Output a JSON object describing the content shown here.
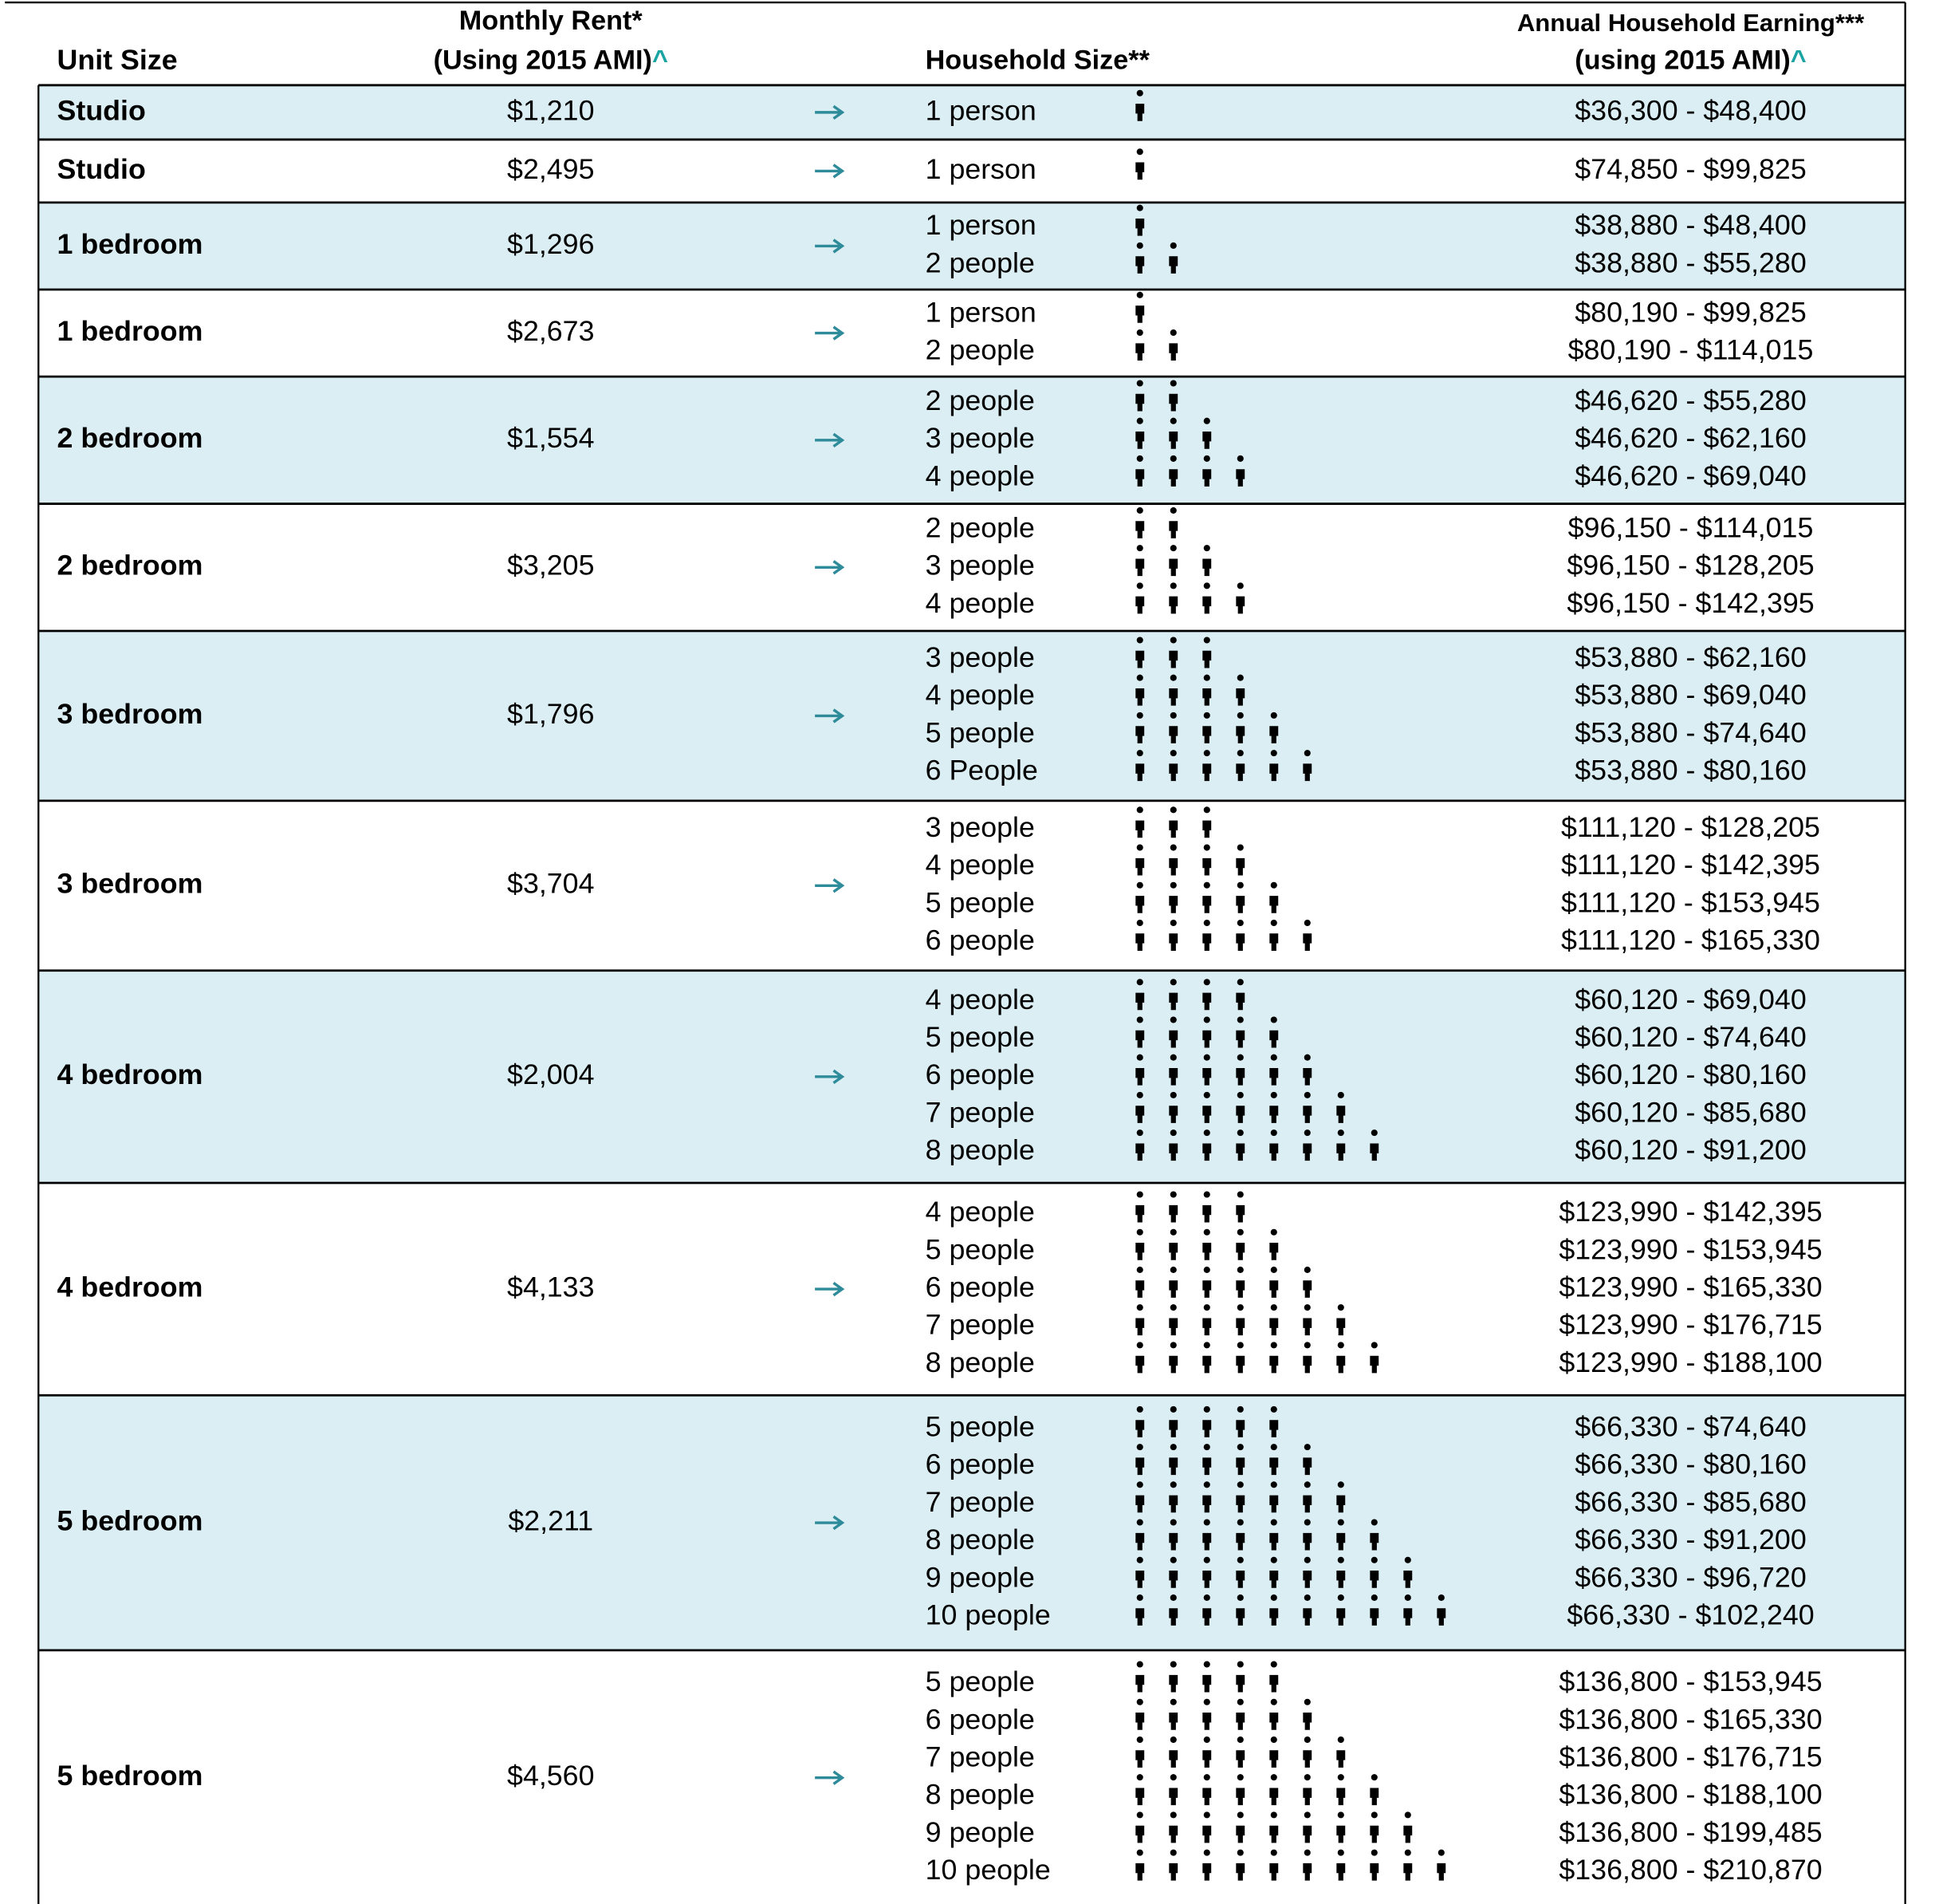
{
  "header": {
    "unit_size": "Unit Size",
    "rent_line1": "Monthly Rent*",
    "rent_line2": "(Using 2015 AMI)",
    "rent_caret": "^",
    "household": "Household Size**",
    "earning_line1": "Annual Household Earning***",
    "earning_line2": "(using 2015 AMI)",
    "earning_caret": "^"
  },
  "rows": [
    {
      "unit": "Studio",
      "rent": "$1,210",
      "households": [
        {
          "size": "1 person",
          "icons": 1,
          "range": "$36,300  - $48,400"
        }
      ]
    },
    {
      "unit": "Studio",
      "rent": "$2,495",
      "households": [
        {
          "size": "1 person",
          "icons": 1,
          "range": "$74,850  - $99,825"
        }
      ]
    },
    {
      "unit": "1 bedroom",
      "rent": "$1,296",
      "households": [
        {
          "size": "1 person",
          "icons": 1,
          "range": "$38,880  - $48,400"
        },
        {
          "size": "2 people",
          "icons": 2,
          "range": "$38,880  - $55,280"
        }
      ]
    },
    {
      "unit": "1 bedroom",
      "rent": "$2,673",
      "households": [
        {
          "size": "1 person",
          "icons": 1,
          "range": "$80,190  - $99,825"
        },
        {
          "size": "2 people",
          "icons": 2,
          "range": "$80,190  - $114,015"
        }
      ]
    },
    {
      "unit": "2 bedroom",
      "rent": "$1,554",
      "households": [
        {
          "size": "2 people",
          "icons": 2,
          "range": "$46,620  - $55,280"
        },
        {
          "size": "3 people",
          "icons": 3,
          "range": "$46,620  - $62,160"
        },
        {
          "size": "4 people",
          "icons": 4,
          "range": "$46,620  - $69,040"
        }
      ]
    },
    {
      "unit": "2 bedroom",
      "rent": "$3,205",
      "households": [
        {
          "size": "2 people",
          "icons": 2,
          "range": "$96,150  - $114,015"
        },
        {
          "size": "3 people",
          "icons": 3,
          "range": "$96,150  - $128,205"
        },
        {
          "size": "4 people",
          "icons": 4,
          "range": "$96,150  - $142,395"
        }
      ]
    },
    {
      "unit": "3 bedroom",
      "rent": "$1,796",
      "households": [
        {
          "size": "3 people",
          "icons": 3,
          "range": "$53,880  - $62,160"
        },
        {
          "size": "4 people",
          "icons": 4,
          "range": "$53,880  - $69,040"
        },
        {
          "size": "5 people",
          "icons": 5,
          "range": "$53,880  - $74,640"
        },
        {
          "size": "6 People",
          "icons": 6,
          "range": "$53,880  - $80,160"
        }
      ]
    },
    {
      "unit": "3 bedroom",
      "rent": "$3,704",
      "households": [
        {
          "size": "3 people",
          "icons": 3,
          "range": "$111,120  - $128,205"
        },
        {
          "size": "4 people",
          "icons": 4,
          "range": "$111,120  - $142,395"
        },
        {
          "size": "5 people",
          "icons": 5,
          "range": "$111,120  - $153,945"
        },
        {
          "size": "6 people",
          "icons": 6,
          "range": "$111,120  - $165,330"
        }
      ]
    },
    {
      "unit": "4 bedroom",
      "rent": "$2,004",
      "households": [
        {
          "size": "4 people",
          "icons": 4,
          "range": "$60,120 - $69,040"
        },
        {
          "size": "5 people",
          "icons": 5,
          "range": "$60,120 - $74,640"
        },
        {
          "size": "6 people",
          "icons": 6,
          "range": "$60,120 - $80,160"
        },
        {
          "size": "7 people",
          "icons": 7,
          "range": "$60,120 - $85,680"
        },
        {
          "size": "8 people",
          "icons": 8,
          "range": "$60,120 - $91,200"
        }
      ]
    },
    {
      "unit": "4 bedroom",
      "rent": "$4,133",
      "households": [
        {
          "size": "4 people",
          "icons": 4,
          "range": "$123,990 - $142,395"
        },
        {
          "size": "5 people",
          "icons": 5,
          "range": "$123,990 - $153,945"
        },
        {
          "size": "6 people",
          "icons": 6,
          "range": "$123,990 - $165,330"
        },
        {
          "size": "7 people",
          "icons": 7,
          "range": "$123,990 - $176,715"
        },
        {
          "size": "8 people",
          "icons": 8,
          "range": "$123,990 - $188,100"
        }
      ]
    },
    {
      "unit": "5 bedroom",
      "rent": "$2,211",
      "households": [
        {
          "size": "5 people",
          "icons": 5,
          "range": "$66,330  - $74,640"
        },
        {
          "size": "6 people",
          "icons": 6,
          "range": "$66,330 - $80,160"
        },
        {
          "size": "7 people",
          "icons": 7,
          "range": "$66,330  - $85,680"
        },
        {
          "size": "8 people",
          "icons": 8,
          "range": "$66,330 - $91,200"
        },
        {
          "size": "9 people",
          "icons": 9,
          "range": "$66,330 - $96,720"
        },
        {
          "size": "10 people",
          "icons": 10,
          "range": "$66,330 - $102,240"
        }
      ]
    },
    {
      "unit": "5 bedroom",
      "rent": "$4,560",
      "households": [
        {
          "size": "5 people",
          "icons": 5,
          "range": "$136,800  - $153,945"
        },
        {
          "size": "6 people",
          "icons": 6,
          "range": "$136,800  - $165,330"
        },
        {
          "size": "7 people",
          "icons": 7,
          "range": "$136,800  - $176,715"
        },
        {
          "size": "8 people",
          "icons": 8,
          "range": "$136,800  - $188,100"
        },
        {
          "size": "9 people",
          "icons": 9,
          "range": "$136,800  - $199,485"
        },
        {
          "size": "10 people",
          "icons": 10,
          "range": "$136,800  - $210,870"
        }
      ]
    }
  ]
}
